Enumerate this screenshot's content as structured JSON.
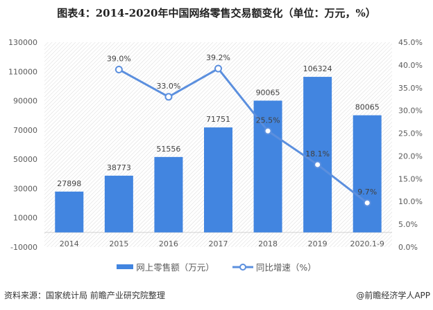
{
  "title": "图表4：2014-2020年中国网络零售交易额变化（单位：万元，%）",
  "chart_data": {
    "type": "bar",
    "categories": [
      "2014",
      "2015",
      "2016",
      "2017",
      "2018",
      "2019",
      "2020.1-9"
    ],
    "series": [
      {
        "name": "网上零售额（万元）",
        "type": "bar",
        "axis": "left",
        "color": "#4285e0",
        "values": [
          27898,
          38773,
          51556,
          71751,
          90065,
          106324,
          80065
        ],
        "labels": [
          "27898",
          "38773",
          "51556",
          "71751",
          "90065",
          "106324",
          "80065"
        ]
      },
      {
        "name": "同比增速（%）",
        "type": "line",
        "axis": "right",
        "color": "#5b8fde",
        "values": [
          null,
          39.0,
          33.0,
          39.2,
          25.5,
          18.1,
          9.7
        ],
        "labels": [
          "",
          "39.0%",
          "33.0%",
          "39.2%",
          "25.5%",
          "18.1%",
          "9.7%"
        ]
      }
    ],
    "left_axis": {
      "ylim": [
        -10000,
        130000
      ],
      "ticks": [
        "-10000",
        "10000",
        "30000",
        "50000",
        "70000",
        "90000",
        "110000",
        "130000"
      ]
    },
    "right_axis": {
      "ylim": [
        0,
        45
      ],
      "ticks": [
        "0.0%",
        "5.0%",
        "10.0%",
        "15.0%",
        "20.0%",
        "25.0%",
        "30.0%",
        "35.0%",
        "40.0%",
        "45.0%"
      ]
    },
    "legend_position": "bottom"
  },
  "legend": {
    "bar": "网上零售额（万元）",
    "line": "同比增速（%）"
  },
  "source": "资料来源：国家统计局 前瞻产业研究院整理",
  "credit": "@前瞻经济学人APP"
}
